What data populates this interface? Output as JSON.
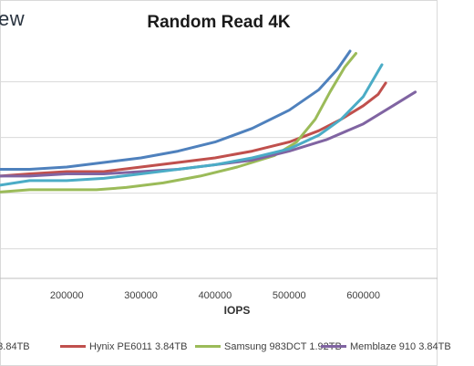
{
  "watermark": "ew",
  "chart_data": {
    "type": "line",
    "title": "Random Read 4K",
    "xlabel": "IOPS",
    "ylabel": "",
    "xlim": [
      110000,
      700000
    ],
    "x_ticks": [
      "200000",
      "300000",
      "400000",
      "500000",
      "600000"
    ],
    "x_tick_values": [
      200000,
      300000,
      400000,
      500000,
      600000
    ],
    "ylim": [
      0,
      1
    ],
    "y_grid": [
      0.13,
      0.375,
      0.62,
      0.865
    ],
    "grid": true,
    "legend_position": "bottom",
    "series": [
      {
        "name": "...3.84TB",
        "color": "#4f81bd",
        "points": [
          [
            110000,
            0.48
          ],
          [
            150000,
            0.48
          ],
          [
            200000,
            0.49
          ],
          [
            250000,
            0.51
          ],
          [
            300000,
            0.53
          ],
          [
            350000,
            0.56
          ],
          [
            400000,
            0.6
          ],
          [
            450000,
            0.66
          ],
          [
            500000,
            0.74
          ],
          [
            540000,
            0.83
          ],
          [
            565000,
            0.92
          ],
          [
            582000,
            1.0
          ]
        ]
      },
      {
        "name": "Hynix PE6011 3.84TB",
        "color": "#c0504d",
        "points": [
          [
            110000,
            0.45
          ],
          [
            150000,
            0.46
          ],
          [
            200000,
            0.47
          ],
          [
            250000,
            0.47
          ],
          [
            300000,
            0.49
          ],
          [
            350000,
            0.51
          ],
          [
            400000,
            0.53
          ],
          [
            450000,
            0.56
          ],
          [
            500000,
            0.6
          ],
          [
            540000,
            0.65
          ],
          [
            570000,
            0.7
          ],
          [
            600000,
            0.76
          ],
          [
            620000,
            0.81
          ],
          [
            630000,
            0.86
          ]
        ]
      },
      {
        "name": "Samsung 983DCT 1.92TB",
        "color": "#9bbb59",
        "points": [
          [
            110000,
            0.38
          ],
          [
            150000,
            0.39
          ],
          [
            200000,
            0.39
          ],
          [
            240000,
            0.39
          ],
          [
            280000,
            0.4
          ],
          [
            330000,
            0.42
          ],
          [
            380000,
            0.45
          ],
          [
            430000,
            0.49
          ],
          [
            480000,
            0.54
          ],
          [
            510000,
            0.6
          ],
          [
            535000,
            0.7
          ],
          [
            555000,
            0.82
          ],
          [
            575000,
            0.93
          ],
          [
            590000,
            0.99
          ]
        ]
      },
      {
        "name": "Memblaze 910 3.84TB",
        "color": "#8064a2",
        "points": [
          [
            110000,
            0.45
          ],
          [
            150000,
            0.45
          ],
          [
            200000,
            0.46
          ],
          [
            250000,
            0.46
          ],
          [
            300000,
            0.47
          ],
          [
            350000,
            0.48
          ],
          [
            400000,
            0.5
          ],
          [
            450000,
            0.52
          ],
          [
            500000,
            0.56
          ],
          [
            550000,
            0.61
          ],
          [
            600000,
            0.68
          ],
          [
            640000,
            0.76
          ],
          [
            670000,
            0.82
          ]
        ]
      },
      {
        "name": "",
        "color": "#4bacc6",
        "points": [
          [
            110000,
            0.41
          ],
          [
            150000,
            0.43
          ],
          [
            200000,
            0.43
          ],
          [
            250000,
            0.44
          ],
          [
            300000,
            0.46
          ],
          [
            350000,
            0.48
          ],
          [
            400000,
            0.5
          ],
          [
            450000,
            0.53
          ],
          [
            500000,
            0.57
          ],
          [
            540000,
            0.63
          ],
          [
            570000,
            0.7
          ],
          [
            600000,
            0.8
          ],
          [
            625000,
            0.94
          ]
        ]
      }
    ]
  }
}
